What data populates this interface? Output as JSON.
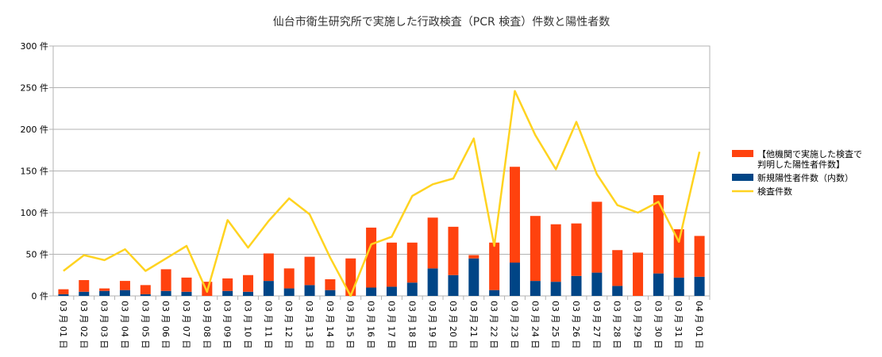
{
  "chart_data": {
    "type": "bar+line",
    "title": "仙台市衛生研究所で実施した行政検査（PCR 検査）件数と陽性者数",
    "categories": [
      "03 月 01 日",
      "03 月 02 日",
      "03 月 03 日",
      "03 月 04 日",
      "03 月 05 日",
      "03 月 06 日",
      "03 月 07 日",
      "03 月 08 日",
      "03 月 09 日",
      "03 月 10 日",
      "03 月 11 日",
      "03 月 12 日",
      "03 月 13 日",
      "03 月 14 日",
      "03 月 15 日",
      "03 月 16 日",
      "03 月 17 日",
      "03 月 18 日",
      "03 月 19 日",
      "03 月 20 日",
      "03 月 21 日",
      "03 月 22 日",
      "03 月 23 日",
      "03 月 24 日",
      "03 月 25 日",
      "03 月 26 日",
      "03 月 27 日",
      "03 月 28 日",
      "03 月 29 日",
      "03 月 30 日",
      "03 月 31 日",
      "04 月 01 日"
    ],
    "yticks": [
      "0 件",
      "50 件",
      "100 件",
      "150 件",
      "200 件",
      "250 件",
      "300 件"
    ],
    "ylim": [
      0,
      300
    ],
    "grid": true,
    "legend_position": "right",
    "series": [
      {
        "name": "【他機関で実施した検査で判明した陽性者件数】",
        "legend_lines": [
          "【他機関で実施した検査で",
          "判明した陽性者件数】"
        ],
        "kind": "stacked-bar",
        "color": "#ff420e",
        "values": [
          6,
          14,
          3,
          11,
          11,
          26,
          17,
          17,
          15,
          20,
          33,
          24,
          34,
          13,
          45,
          72,
          53,
          48,
          61,
          58,
          4,
          57,
          115,
          78,
          69,
          63,
          85,
          43,
          52,
          94,
          58,
          49
        ]
      },
      {
        "name": "新規陽性者件数（内数）",
        "legend_lines": [
          "新規陽性者件数（内数）"
        ],
        "kind": "stacked-bar",
        "color": "#004586",
        "values": [
          2,
          5,
          6,
          7,
          2,
          6,
          5,
          0,
          6,
          5,
          18,
          9,
          13,
          7,
          0,
          10,
          11,
          16,
          33,
          25,
          45,
          7,
          40,
          18,
          17,
          24,
          28,
          12,
          0,
          27,
          22,
          23
        ]
      },
      {
        "name": "検査件数",
        "legend_lines": [
          "検査件数"
        ],
        "kind": "line",
        "color": "#ffd320",
        "values": [
          30,
          49,
          43,
          56,
          30,
          45,
          60,
          5,
          91,
          58,
          90,
          117,
          98,
          46,
          0,
          62,
          71,
          120,
          134,
          141,
          189,
          60,
          246,
          193,
          152,
          209,
          146,
          109,
          100,
          113,
          65,
          173
        ]
      }
    ]
  }
}
